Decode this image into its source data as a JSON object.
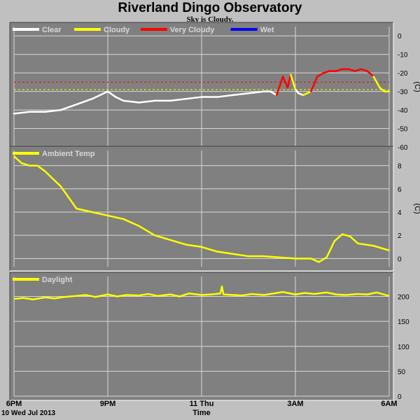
{
  "title": "Riverland Dingo Observatory",
  "subtitle": "Sky is Cloudy.",
  "colors": {
    "background": "#c0c0c0",
    "plot_bg": "#808080",
    "grid": "#d8d8d8",
    "clear": "#ffffff",
    "cloudy": "#ffff00",
    "very_cloudy": "#ff0000",
    "wet": "#0000ff"
  },
  "x_axis": {
    "label": "Time",
    "range_hours": [
      18,
      30
    ],
    "ticks": [
      {
        "hour": 18,
        "label": "6PM"
      },
      {
        "hour": 21,
        "label": "9PM"
      },
      {
        "hour": 24,
        "label": "11 Thu"
      },
      {
        "hour": 27,
        "label": "3AM"
      },
      {
        "hour": 30,
        "label": "6AM"
      }
    ],
    "date_label": "10 Wed Jul 2013"
  },
  "chart_data": [
    {
      "type": "line",
      "id": "sky",
      "unit_label": "(C)",
      "ylim": [
        -60,
        5
      ],
      "yticks": [
        0,
        -10,
        -20,
        -30,
        -40,
        -50,
        -60
      ],
      "thresholds": [
        {
          "value": -25,
          "color": "#ff0000"
        },
        {
          "value": -29,
          "color": "#ffff00"
        }
      ],
      "legend": [
        {
          "name": "Clear",
          "color": "#ffffff"
        },
        {
          "name": "Cloudy",
          "color": "#ffff00"
        },
        {
          "name": "Very Cloudy",
          "color": "#ff0000"
        },
        {
          "name": "Wet",
          "color": "#0000ff"
        }
      ],
      "x": [
        18.0,
        18.5,
        19.0,
        19.5,
        20.0,
        20.5,
        21.0,
        21.25,
        21.5,
        22.0,
        22.5,
        23.0,
        23.5,
        24.0,
        24.5,
        25.0,
        25.5,
        26.0,
        26.2,
        26.4,
        26.6,
        26.75,
        26.85,
        27.0,
        27.1,
        27.25,
        27.5,
        27.7,
        27.9,
        28.1,
        28.3,
        28.5,
        28.7,
        28.9,
        29.1,
        29.3,
        29.5,
        29.7,
        29.85,
        30.0
      ],
      "y": [
        -42,
        -41,
        -41,
        -40,
        -37,
        -34,
        -30,
        -33,
        -35,
        -36,
        -35,
        -35,
        -34,
        -33,
        -33,
        -32,
        -31,
        -30,
        -30,
        -32,
        -22,
        -28,
        -21,
        -29,
        -31,
        -32,
        -30,
        -22,
        -20,
        -19,
        -19,
        -18,
        -18,
        -19,
        -18,
        -19,
        -22,
        -28,
        -30,
        -30
      ],
      "status": [
        "Clear",
        "Clear",
        "Clear",
        "Clear",
        "Clear",
        "Clear",
        "Clear",
        "Clear",
        "Clear",
        "Clear",
        "Clear",
        "Clear",
        "Clear",
        "Clear",
        "Clear",
        "Clear",
        "Clear",
        "Clear",
        "Clear",
        "Clear",
        "Very Cloudy",
        "Very Cloudy",
        "Very Cloudy",
        "Cloudy",
        "Clear",
        "Clear",
        "Cloudy",
        "Very Cloudy",
        "Very Cloudy",
        "Very Cloudy",
        "Very Cloudy",
        "Very Cloudy",
        "Very Cloudy",
        "Very Cloudy",
        "Very Cloudy",
        "Very Cloudy",
        "Very Cloudy",
        "Cloudy",
        "Cloudy",
        "Cloudy"
      ]
    },
    {
      "type": "line",
      "id": "ambient",
      "unit_label": "(C)",
      "ylim": [
        -0.7,
        9.3
      ],
      "yticks": [
        0,
        2,
        4,
        6,
        8
      ],
      "legend": [
        {
          "name": "Ambient Temp",
          "color": "#ffff00"
        }
      ],
      "series": [
        {
          "name": "Ambient Temp",
          "color": "#ffff00",
          "x": [
            18.0,
            18.25,
            18.5,
            18.75,
            19.0,
            19.5,
            20.0,
            20.5,
            21.0,
            21.5,
            22.0,
            22.5,
            23.0,
            23.5,
            24.0,
            24.5,
            25.0,
            25.5,
            26.0,
            26.5,
            27.0,
            27.5,
            27.75,
            28.0,
            28.25,
            28.5,
            28.75,
            29.0,
            29.5,
            30.0
          ],
          "y": [
            8.8,
            8.2,
            8.0,
            8.0,
            7.5,
            6.2,
            4.3,
            4.0,
            3.7,
            3.4,
            2.8,
            2.0,
            1.6,
            1.2,
            1.0,
            0.6,
            0.4,
            0.2,
            0.2,
            0.1,
            0.0,
            0.0,
            -0.3,
            0.1,
            1.5,
            2.1,
            1.9,
            1.3,
            1.1,
            0.7
          ]
        }
      ]
    },
    {
      "type": "line",
      "id": "daylight",
      "ylim": [
        0,
        240
      ],
      "yticks": [
        200,
        150,
        100,
        50,
        0
      ],
      "legend": [
        {
          "name": "Daylight",
          "color": "#ffff00"
        }
      ],
      "series": [
        {
          "name": "Daylight",
          "color": "#ffff00",
          "x": [
            18.0,
            18.3,
            18.6,
            19.0,
            19.3,
            19.6,
            20.0,
            20.3,
            20.6,
            21.0,
            21.3,
            21.6,
            22.0,
            22.3,
            22.6,
            23.0,
            23.3,
            23.6,
            24.0,
            24.3,
            24.6,
            24.65,
            24.7,
            25.0,
            25.3,
            25.6,
            26.0,
            26.3,
            26.6,
            27.0,
            27.3,
            27.6,
            28.0,
            28.3,
            28.6,
            29.0,
            29.3,
            29.6,
            30.0
          ],
          "y": [
            195,
            197,
            194,
            198,
            196,
            199,
            201,
            203,
            199,
            204,
            200,
            203,
            202,
            205,
            201,
            204,
            200,
            206,
            203,
            204,
            206,
            220,
            204,
            203,
            202,
            205,
            203,
            206,
            209,
            204,
            207,
            205,
            208,
            204,
            203,
            205,
            204,
            208,
            201
          ]
        }
      ]
    }
  ]
}
